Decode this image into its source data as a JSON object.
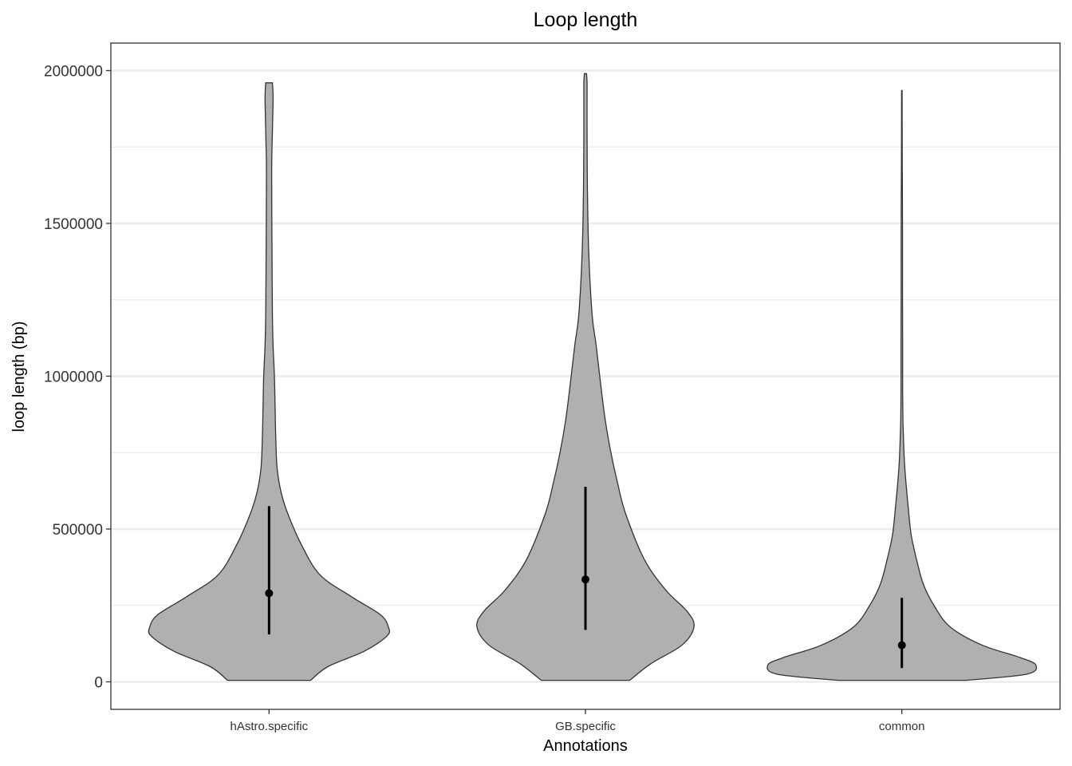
{
  "chart_data": {
    "type": "violin",
    "title": "Loop length",
    "xlabel": "Annotations",
    "ylabel": "loop length (bp)",
    "ylim": [
      -90000,
      2090000
    ],
    "yticks": [
      0,
      500000,
      1000000,
      1500000,
      2000000
    ],
    "ytick_labels": [
      "0",
      "500000",
      "1000000",
      "1500000",
      "2000000"
    ],
    "grid": true,
    "colors": {
      "fill": "#b0b0b0",
      "outline": "#333333",
      "summary": "#000000",
      "grid": "#ebebeb"
    },
    "categories": [
      "hAstro.specific",
      "GB.specific",
      "common"
    ],
    "series": [
      {
        "category": "hAstro.specific",
        "median": 290000,
        "q1": 155000,
        "q3": 575000,
        "min": 5000,
        "max": 1960000,
        "density": [
          [
            5000,
            0.31
          ],
          [
            50000,
            0.44
          ],
          [
            100000,
            0.71
          ],
          [
            150000,
            0.88
          ],
          [
            180000,
            0.89
          ],
          [
            220000,
            0.83
          ],
          [
            280000,
            0.61
          ],
          [
            350000,
            0.38
          ],
          [
            450000,
            0.24
          ],
          [
            550000,
            0.14
          ],
          [
            620000,
            0.09
          ],
          [
            700000,
            0.06
          ],
          [
            800000,
            0.05
          ],
          [
            900000,
            0.045
          ],
          [
            1000000,
            0.04
          ],
          [
            1100000,
            0.03
          ],
          [
            1200000,
            0.025
          ],
          [
            1400000,
            0.022
          ],
          [
            1600000,
            0.02
          ],
          [
            1700000,
            0.02
          ],
          [
            1800000,
            0.025
          ],
          [
            1900000,
            0.03
          ],
          [
            1940000,
            0.028
          ],
          [
            1960000,
            0.025
          ]
        ]
      },
      {
        "category": "GB.specific",
        "median": 335000,
        "q1": 170000,
        "q3": 638000,
        "min": 5000,
        "max": 1990000,
        "density": [
          [
            5000,
            0.33
          ],
          [
            60000,
            0.49
          ],
          [
            120000,
            0.72
          ],
          [
            180000,
            0.81
          ],
          [
            230000,
            0.76
          ],
          [
            300000,
            0.6
          ],
          [
            400000,
            0.44
          ],
          [
            550000,
            0.3
          ],
          [
            650000,
            0.24
          ],
          [
            750000,
            0.19
          ],
          [
            850000,
            0.15
          ],
          [
            950000,
            0.12
          ],
          [
            1100000,
            0.08
          ],
          [
            1200000,
            0.05
          ],
          [
            1400000,
            0.025
          ],
          [
            1600000,
            0.015
          ],
          [
            1800000,
            0.012
          ],
          [
            1900000,
            0.012
          ],
          [
            1960000,
            0.012
          ],
          [
            1990000,
            0.008
          ]
        ]
      },
      {
        "category": "common",
        "median": 120000,
        "q1": 45000,
        "q3": 275000,
        "min": 5000,
        "max": 1935000,
        "density": [
          [
            5000,
            0.48
          ],
          [
            25000,
            0.93
          ],
          [
            55000,
            1.0
          ],
          [
            80000,
            0.88
          ],
          [
            120000,
            0.6
          ],
          [
            180000,
            0.36
          ],
          [
            250000,
            0.24
          ],
          [
            320000,
            0.16
          ],
          [
            400000,
            0.11
          ],
          [
            480000,
            0.07
          ],
          [
            560000,
            0.05
          ],
          [
            640000,
            0.033
          ],
          [
            700000,
            0.022
          ],
          [
            750000,
            0.016
          ],
          [
            800000,
            0.012
          ],
          [
            860000,
            0.008
          ],
          [
            950000,
            0.006
          ],
          [
            1100000,
            0.006
          ],
          [
            1300000,
            0.005
          ],
          [
            1500000,
            0.005
          ],
          [
            1700000,
            0.003
          ],
          [
            1935000,
            0.002
          ]
        ]
      }
    ]
  }
}
